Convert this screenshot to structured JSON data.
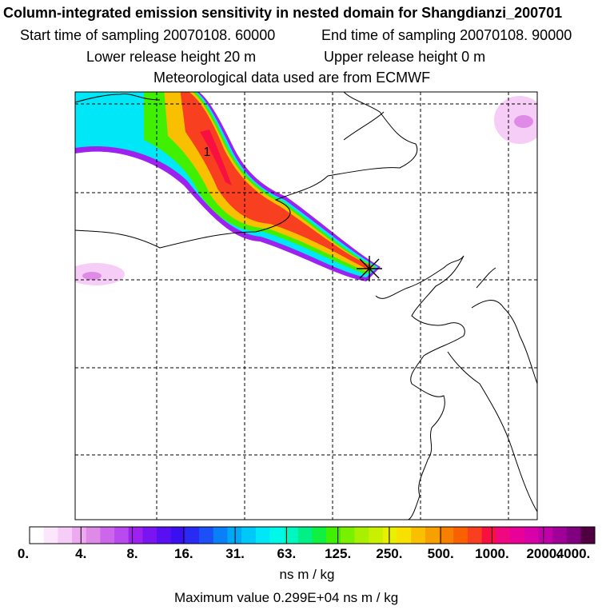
{
  "header": {
    "title": "Column-integrated emission sensitivity in nested domain for Shangdianzi_200701",
    "start_label": "Start time of sampling 20070108. 60000",
    "end_label": "End time of sampling 20070108. 90000",
    "lower_label": "Lower release height   20 m",
    "upper_label": "Upper release height    0 m",
    "met_label": "Meteorological data used are from ECMWF"
  },
  "chart_data": {
    "type": "heatmap",
    "title": "Column-integrated emission sensitivity in nested domain for Shangdianzi_200701",
    "colorbar": {
      "ticks": [
        "0.",
        "4.",
        "8.",
        "16.",
        "31.",
        "63.",
        "125.",
        "250.",
        "500.",
        "1000.",
        "2000.",
        "4000."
      ],
      "colors": [
        "#ffffff",
        "#fbe6fb",
        "#f6cdf6",
        "#eeaaf0",
        "#e08ae8",
        "#cc66ea",
        "#b84af0",
        "#9d22f0",
        "#7a14f0",
        "#5a0ff2",
        "#3a10f0",
        "#2a2af5",
        "#1a50f5",
        "#0a80f8",
        "#00a8f8",
        "#00c8f8",
        "#00e8f8",
        "#00f8e8",
        "#00f8c0",
        "#00f088",
        "#10f040",
        "#40f000",
        "#78f000",
        "#a8f000",
        "#c8f000",
        "#e8f000",
        "#f8e000",
        "#f8c000",
        "#f8a000",
        "#f88000",
        "#f86000",
        "#f84020",
        "#f81040",
        "#f00880",
        "#e80098",
        "#d800a8",
        "#c000a8",
        "#a00098",
        "#800080",
        "#500040"
      ],
      "units": "ns m / kg"
    },
    "maximum_label": "Maximum value  0.299E+04 ns m / kg",
    "maximum_value": 2990,
    "marker_label": "1",
    "grid": true
  }
}
